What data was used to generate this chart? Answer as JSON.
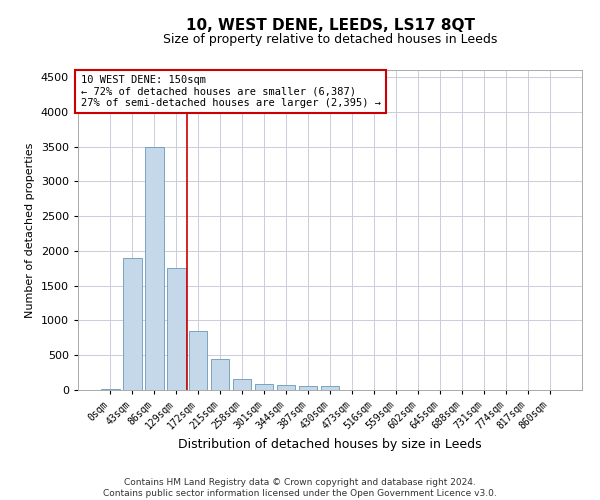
{
  "title": "10, WEST DENE, LEEDS, LS17 8QT",
  "subtitle": "Size of property relative to detached houses in Leeds",
  "xlabel": "Distribution of detached houses by size in Leeds",
  "ylabel": "Number of detached properties",
  "footer_line1": "Contains HM Land Registry data © Crown copyright and database right 2024.",
  "footer_line2": "Contains public sector information licensed under the Open Government Licence v3.0.",
  "annotation_line1": "10 WEST DENE: 150sqm",
  "annotation_line2": "← 72% of detached houses are smaller (6,387)",
  "annotation_line3": "27% of semi-detached houses are larger (2,395) →",
  "bar_color": "#c5d8ea",
  "bar_edge_color": "#6699bb",
  "vline_color": "#cc0000",
  "vline_position": 3.5,
  "categories": [
    "0sqm",
    "43sqm",
    "86sqm",
    "129sqm",
    "172sqm",
    "215sqm",
    "258sqm",
    "301sqm",
    "344sqm",
    "387sqm",
    "430sqm",
    "473sqm",
    "516sqm",
    "559sqm",
    "602sqm",
    "645sqm",
    "688sqm",
    "731sqm",
    "774sqm",
    "817sqm",
    "860sqm"
  ],
  "values": [
    18,
    1900,
    3490,
    1760,
    855,
    450,
    155,
    90,
    68,
    58,
    55,
    0,
    0,
    0,
    0,
    0,
    0,
    0,
    0,
    0,
    0
  ],
  "ylim": [
    0,
    4600
  ],
  "yticks": [
    0,
    500,
    1000,
    1500,
    2000,
    2500,
    3000,
    3500,
    4000,
    4500
  ],
  "background_color": "#ffffff",
  "grid_color": "#ccccdd",
  "annotation_box_color": "#ffffff",
  "annotation_box_edge_color": "#cc0000",
  "title_fontsize": 11,
  "subtitle_fontsize": 9,
  "tick_fontsize": 7,
  "ylabel_fontsize": 8,
  "xlabel_fontsize": 9,
  "footer_fontsize": 6.5,
  "annotation_fontsize": 7.5
}
